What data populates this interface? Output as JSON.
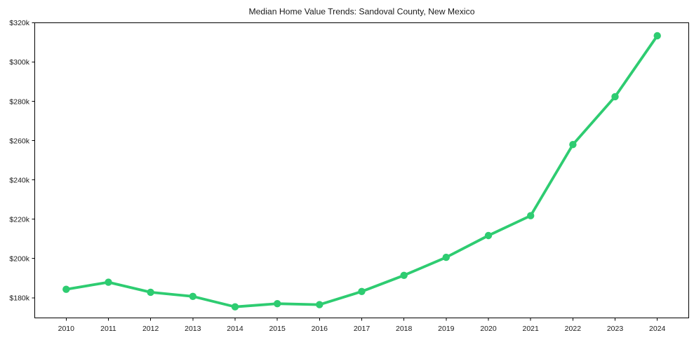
{
  "figure": {
    "title": "Median Home Value Trends: Sandoval County, New Mexico",
    "background": "#ffffff"
  },
  "chart_data": {
    "type": "line",
    "title": "Median Home Value Trends: Sandoval County, New Mexico",
    "xlabel": "",
    "ylabel": "",
    "series_name": "median-home-value",
    "x": [
      2010,
      2011,
      2012,
      2013,
      2014,
      2015,
      2016,
      2017,
      2018,
      2019,
      2020,
      2021,
      2022,
      2023,
      2024
    ],
    "values_thousands": [
      184.3,
      187.9,
      182.8,
      180.7,
      175.4,
      177.0,
      176.5,
      183.2,
      191.4,
      200.6,
      211.7,
      221.8,
      258.0,
      282.4,
      313.4
    ],
    "x_tick_labels": [
      "2010",
      "2011",
      "2012",
      "2013",
      "2014",
      "2015",
      "2016",
      "2017",
      "2018",
      "2019",
      "2020",
      "2021",
      "2022",
      "2023",
      "2024"
    ],
    "y_tick_values": [
      180,
      200,
      220,
      240,
      260,
      280,
      300,
      320
    ],
    "y_tick_labels": [
      "$180k",
      "$200k",
      "$220k",
      "$240k",
      "$260k",
      "$280k",
      "$300k",
      "$320k"
    ],
    "ylim_thousands": [
      169.75,
      320
    ],
    "grid": false,
    "legend": false,
    "marker": "circle",
    "line_color": "#2ecc71",
    "axis_color": "#000000",
    "text_color": "#1a1a1a",
    "background": "#ffffff"
  }
}
